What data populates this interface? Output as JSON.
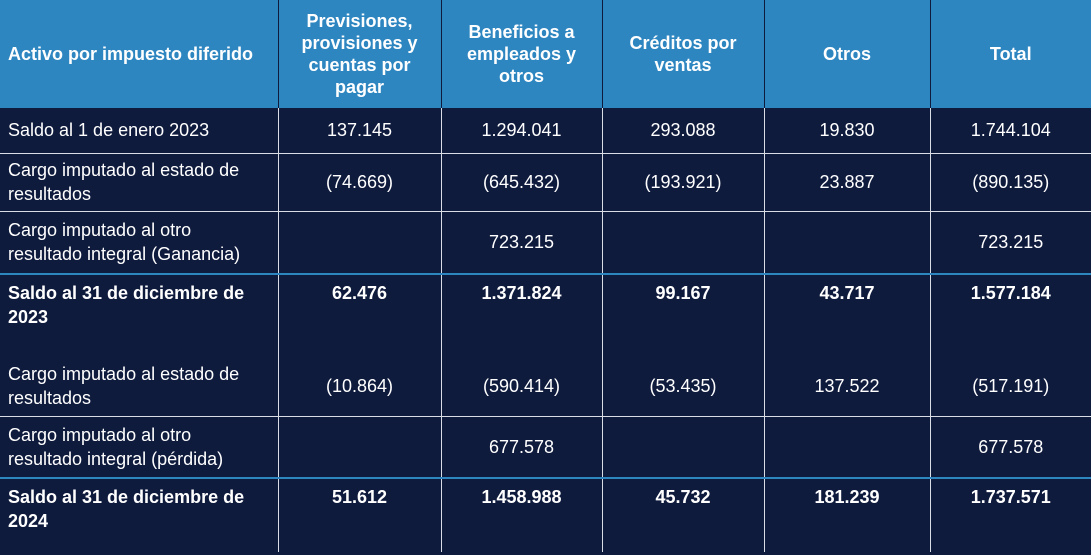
{
  "headers": [
    "Activo por impuesto diferido",
    "Previsiones, provisiones y cuentas por pagar",
    "Beneficios a empleados y otros",
    "Créditos por ventas",
    "Otros",
    "Total"
  ],
  "rows": [
    {
      "label": "Saldo al 1 de enero 2023",
      "values": [
        "137.145",
        "1.294.041",
        "293.088",
        "19.830",
        "1.744.104"
      ]
    },
    {
      "label": "Cargo imputado al estado de resultados",
      "values": [
        "(74.669)",
        "(645.432)",
        "(193.921)",
        "23.887",
        "(890.135)"
      ]
    },
    {
      "label": "Cargo imputado al otro resultado integral (Ganancia)",
      "values": [
        "",
        "723.215",
        "",
        "",
        "723.215"
      ]
    },
    {
      "label": "Saldo al 31 de diciembre de 2023",
      "values": [
        "62.476",
        "1.371.824",
        "99.167",
        "43.717",
        "1.577.184"
      ]
    },
    {
      "label": "Cargo imputado al estado de resultados",
      "values": [
        "(10.864)",
        "(590.414)",
        "(53.435)",
        "137.522",
        "(517.191)"
      ]
    },
    {
      "label": "Cargo imputado al otro resultado integral (pérdida)",
      "values": [
        "",
        "677.578",
        "",
        "",
        "677.578"
      ]
    },
    {
      "label": "Saldo al 31 de diciembre de 2024",
      "values": [
        "51.612",
        "1.458.988",
        "45.732",
        "181.239",
        "1.737.571"
      ]
    }
  ],
  "colors": {
    "header_bg": "#2e86c1",
    "body_bg": "#0f1b3d",
    "text": "#ffffff",
    "separator": "#2e86c1"
  }
}
